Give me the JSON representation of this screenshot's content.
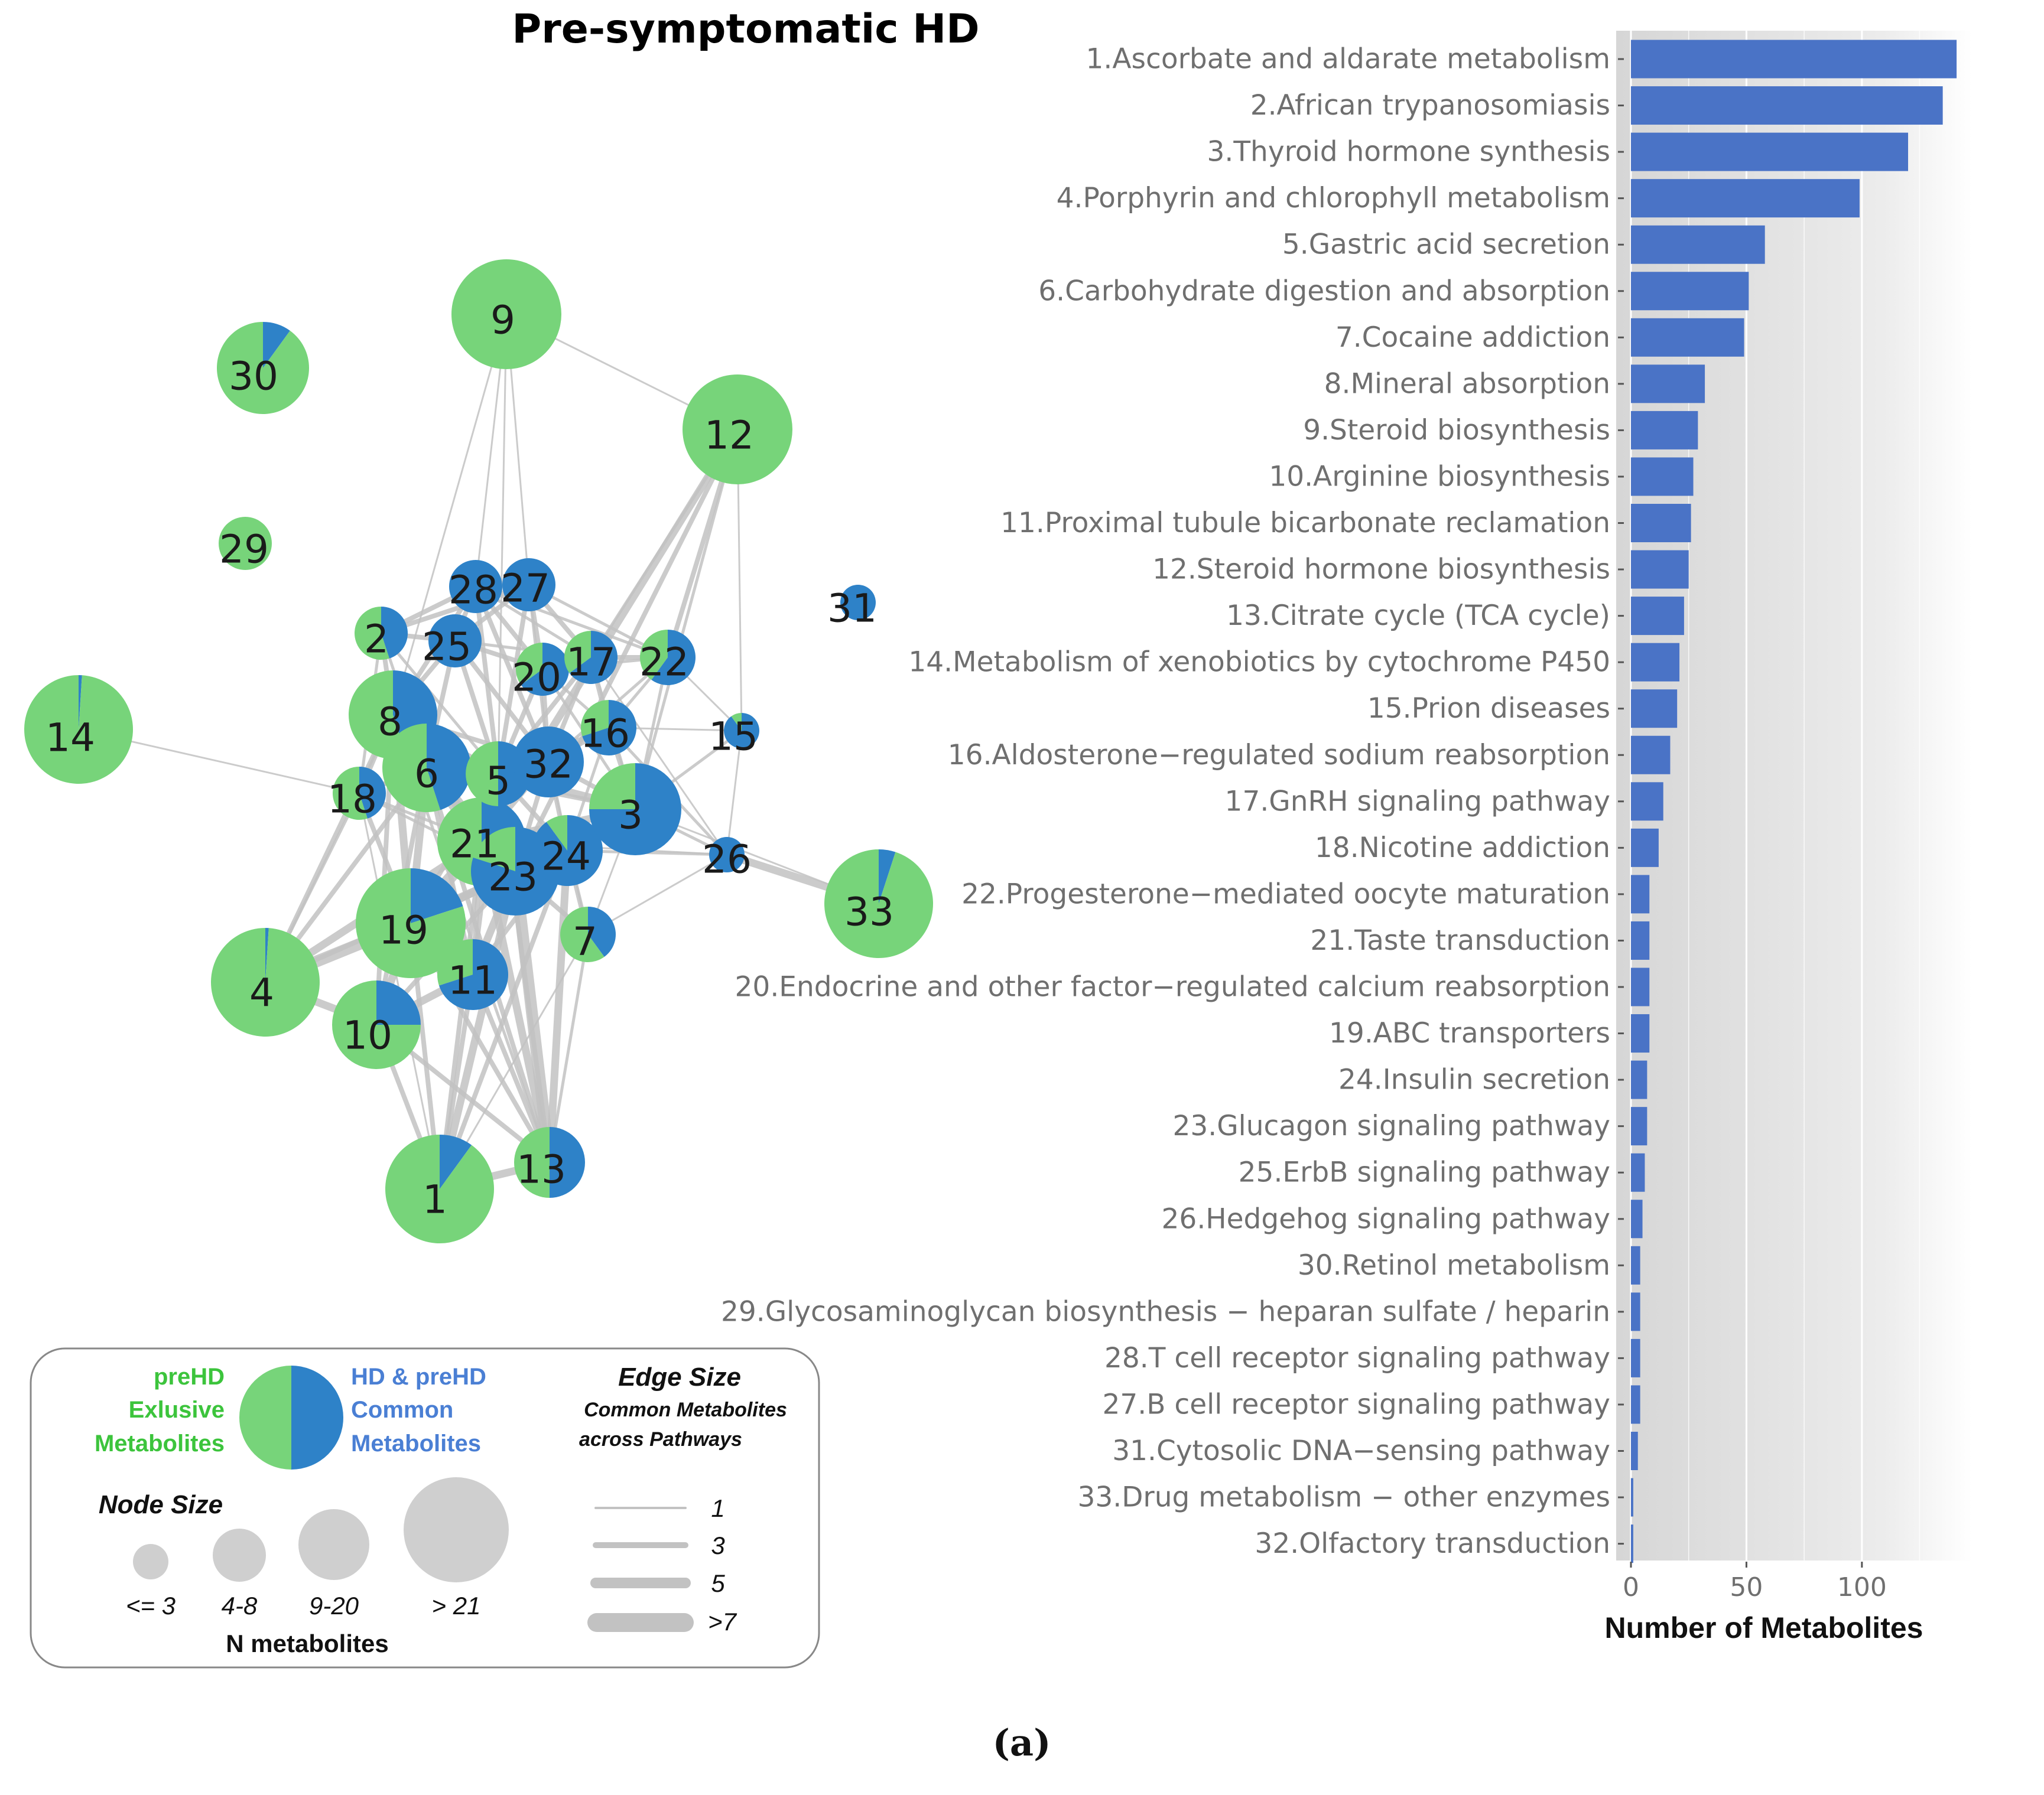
{
  "figure": {
    "network_title": "Pre-symptomatic HD",
    "panel_label": "(a)"
  },
  "colors": {
    "exclusive": "#77d47a",
    "common": "#2e82c8",
    "bar": "#4a73c6",
    "edge": "#c2c2c2",
    "legend_node": "#cfcfcf",
    "legend_green_text": "#3cc43c",
    "legend_blue_text": "#4a7fd4"
  },
  "network": {
    "nodes": [
      {
        "id": "1",
        "exclusive_share": 0.9
      },
      {
        "id": "2",
        "exclusive_share": 0.55
      },
      {
        "id": "3",
        "exclusive_share": 0.25
      },
      {
        "id": "4",
        "exclusive_share": 0.99
      },
      {
        "id": "5",
        "exclusive_share": 0.5
      },
      {
        "id": "6",
        "exclusive_share": 0.55
      },
      {
        "id": "7",
        "exclusive_share": 0.6
      },
      {
        "id": "8",
        "exclusive_share": 0.55
      },
      {
        "id": "9",
        "exclusive_share": 1.0
      },
      {
        "id": "10",
        "exclusive_share": 0.75
      },
      {
        "id": "11",
        "exclusive_share": 0.3
      },
      {
        "id": "12",
        "exclusive_share": 1.0
      },
      {
        "id": "13",
        "exclusive_share": 0.5
      },
      {
        "id": "14",
        "exclusive_share": 0.99
      },
      {
        "id": "15",
        "exclusive_share": 0.1
      },
      {
        "id": "16",
        "exclusive_share": 0.3
      },
      {
        "id": "17",
        "exclusive_share": 0.35
      },
      {
        "id": "18",
        "exclusive_share": 0.55
      },
      {
        "id": "19",
        "exclusive_share": 0.8
      },
      {
        "id": "20",
        "exclusive_share": 0.35
      },
      {
        "id": "21",
        "exclusive_share": 0.55
      },
      {
        "id": "22",
        "exclusive_share": 0.4
      },
      {
        "id": "23",
        "exclusive_share": 0.2
      },
      {
        "id": "24",
        "exclusive_share": 0.1
      },
      {
        "id": "25",
        "exclusive_share": 0.0
      },
      {
        "id": "26",
        "exclusive_share": 0.0
      },
      {
        "id": "27",
        "exclusive_share": 0.0
      },
      {
        "id": "28",
        "exclusive_share": 0.0
      },
      {
        "id": "29",
        "exclusive_share": 1.0
      },
      {
        "id": "30",
        "exclusive_share": 0.9
      },
      {
        "id": "31",
        "exclusive_share": 0.0
      },
      {
        "id": "32",
        "exclusive_share": 0.0
      },
      {
        "id": "33",
        "exclusive_share": 0.95
      }
    ],
    "edges": [
      [
        "9",
        "12",
        1
      ],
      [
        "9",
        "28",
        1
      ],
      [
        "9",
        "27",
        1
      ],
      [
        "9",
        "8",
        1
      ],
      [
        "9",
        "5",
        1
      ],
      [
        "12",
        "22",
        3
      ],
      [
        "12",
        "3",
        2
      ],
      [
        "12",
        "15",
        1
      ],
      [
        "12",
        "21",
        5
      ],
      [
        "12",
        "23",
        3
      ],
      [
        "12",
        "17",
        2
      ],
      [
        "14",
        "18",
        1
      ],
      [
        "33",
        "26",
        5
      ],
      [
        "33",
        "3",
        1
      ],
      [
        "26",
        "3",
        2
      ],
      [
        "26",
        "24",
        2
      ],
      [
        "26",
        "21",
        1
      ],
      [
        "26",
        "15",
        1
      ],
      [
        "26",
        "17",
        1
      ],
      [
        "15",
        "22",
        1
      ],
      [
        "15",
        "16",
        1
      ],
      [
        "15",
        "3",
        2
      ],
      [
        "4",
        "19",
        7
      ],
      [
        "4",
        "10",
        5
      ],
      [
        "4",
        "21",
        5
      ],
      [
        "4",
        "23",
        3
      ],
      [
        "4",
        "8",
        3
      ],
      [
        "4",
        "18",
        2
      ],
      [
        "4",
        "6",
        3
      ],
      [
        "1",
        "13",
        5
      ],
      [
        "1",
        "19",
        3
      ],
      [
        "1",
        "10",
        3
      ],
      [
        "1",
        "11",
        3
      ],
      [
        "1",
        "23",
        5
      ],
      [
        "1",
        "24",
        3
      ],
      [
        "1",
        "21",
        3
      ],
      [
        "1",
        "18",
        1
      ],
      [
        "1",
        "7",
        1
      ],
      [
        "13",
        "23",
        7
      ],
      [
        "13",
        "24",
        5
      ],
      [
        "13",
        "21",
        5
      ],
      [
        "13",
        "11",
        3
      ],
      [
        "13",
        "19",
        3
      ],
      [
        "13",
        "10",
        3
      ],
      [
        "13",
        "7",
        2
      ],
      [
        "13",
        "6",
        3
      ],
      [
        "13",
        "5",
        3
      ],
      [
        "13",
        "8",
        2
      ],
      [
        "10",
        "19",
        5
      ],
      [
        "10",
        "11",
        5
      ],
      [
        "10",
        "23",
        3
      ],
      [
        "10",
        "6",
        3
      ],
      [
        "10",
        "8",
        3
      ],
      [
        "11",
        "19",
        5
      ],
      [
        "11",
        "23",
        5
      ],
      [
        "11",
        "24",
        3
      ],
      [
        "11",
        "21",
        3
      ],
      [
        "11",
        "5",
        3
      ],
      [
        "11",
        "6",
        3
      ],
      [
        "19",
        "21",
        7
      ],
      [
        "19",
        "23",
        5
      ],
      [
        "19",
        "6",
        5
      ],
      [
        "19",
        "8",
        5
      ],
      [
        "19",
        "18",
        3
      ],
      [
        "19",
        "5",
        3
      ],
      [
        "19",
        "24",
        3
      ],
      [
        "19",
        "3",
        2
      ],
      [
        "8",
        "6",
        7
      ],
      [
        "8",
        "5",
        5
      ],
      [
        "8",
        "21",
        5
      ],
      [
        "8",
        "2",
        3
      ],
      [
        "8",
        "18",
        3
      ],
      [
        "8",
        "28",
        3
      ],
      [
        "8",
        "25",
        3
      ],
      [
        "8",
        "23",
        3
      ],
      [
        "8",
        "32",
        3
      ],
      [
        "6",
        "5",
        7
      ],
      [
        "6",
        "21",
        7
      ],
      [
        "6",
        "23",
        5
      ],
      [
        "6",
        "32",
        3
      ],
      [
        "6",
        "3",
        3
      ],
      [
        "6",
        "18",
        3
      ],
      [
        "5",
        "21",
        7
      ],
      [
        "5",
        "23",
        5
      ],
      [
        "5",
        "32",
        5
      ],
      [
        "5",
        "3",
        5
      ],
      [
        "5",
        "24",
        3
      ],
      [
        "5",
        "16",
        3
      ],
      [
        "5",
        "20",
        3
      ],
      [
        "5",
        "17",
        3
      ],
      [
        "5",
        "25",
        3
      ],
      [
        "5",
        "27",
        3
      ],
      [
        "5",
        "28",
        3
      ],
      [
        "21",
        "23",
        7
      ],
      [
        "21",
        "24",
        5
      ],
      [
        "21",
        "3",
        5
      ],
      [
        "21",
        "32",
        3
      ],
      [
        "23",
        "24",
        7
      ],
      [
        "23",
        "3",
        5
      ],
      [
        "23",
        "7",
        3
      ],
      [
        "23",
        "32",
        3
      ],
      [
        "24",
        "3",
        5
      ],
      [
        "24",
        "7",
        3
      ],
      [
        "24",
        "16",
        2
      ],
      [
        "24",
        "32",
        3
      ],
      [
        "3",
        "16",
        3
      ],
      [
        "3",
        "32",
        3
      ],
      [
        "3",
        "22",
        2
      ],
      [
        "3",
        "17",
        2
      ],
      [
        "3",
        "20",
        2
      ],
      [
        "2",
        "28",
        3
      ],
      [
        "2",
        "25",
        3
      ],
      [
        "2",
        "27",
        3
      ],
      [
        "2",
        "18",
        2
      ],
      [
        "2",
        "5",
        2
      ],
      [
        "2",
        "6",
        2
      ],
      [
        "28",
        "27",
        3
      ],
      [
        "28",
        "25",
        3
      ],
      [
        "28",
        "20",
        3
      ],
      [
        "28",
        "17",
        2
      ],
      [
        "28",
        "32",
        3
      ],
      [
        "28",
        "22",
        2
      ],
      [
        "27",
        "25",
        3
      ],
      [
        "27",
        "17",
        3
      ],
      [
        "27",
        "22",
        2
      ],
      [
        "27",
        "20",
        3
      ],
      [
        "27",
        "32",
        2
      ],
      [
        "25",
        "20",
        3
      ],
      [
        "25",
        "32",
        3
      ],
      [
        "25",
        "17",
        2
      ],
      [
        "25",
        "6",
        3
      ],
      [
        "20",
        "17",
        3
      ],
      [
        "20",
        "22",
        2
      ],
      [
        "20",
        "32",
        3
      ],
      [
        "20",
        "16",
        2
      ],
      [
        "17",
        "22",
        3
      ],
      [
        "17",
        "16",
        3
      ],
      [
        "17",
        "32",
        3
      ],
      [
        "22",
        "16",
        2
      ],
      [
        "22",
        "32",
        2
      ],
      [
        "16",
        "32",
        3
      ],
      [
        "16",
        "26",
        2
      ],
      [
        "18",
        "6",
        3
      ],
      [
        "18",
        "21",
        2
      ],
      [
        "18",
        "23",
        2
      ],
      [
        "7",
        "3",
        1
      ],
      [
        "7",
        "26",
        1
      ],
      [
        "7",
        "32",
        1
      ]
    ]
  },
  "legend": {
    "exclusive_lines": [
      "preHD",
      "Exlusive",
      "Metabolites"
    ],
    "common_lines": [
      "HD & preHD",
      "Common",
      "Metabolites"
    ],
    "node_size_title": "Node Size",
    "node_size_labels": [
      "<= 3",
      "4-8",
      "9-20",
      "> 21"
    ],
    "node_size_caption": "N metabolites",
    "edge_size_title": "Edge Size",
    "edge_size_subtitle": [
      "Common Metabolites",
      "across Pathways"
    ],
    "edge_size_labels": [
      "1",
      "3",
      "5",
      ">7"
    ]
  },
  "chart_data": {
    "type": "bar",
    "orientation": "horizontal",
    "title": "",
    "xlabel": "Number of Metabolites",
    "ylabel": "",
    "xlim": [
      0,
      142
    ],
    "xticks": [
      0,
      50,
      100
    ],
    "grid": true,
    "categories": [
      "1.Ascorbate and aldarate metabolism",
      "2.African trypanosomiasis",
      "3.Thyroid hormone synthesis",
      "4.Porphyrin and chlorophyll metabolism",
      "5.Gastric acid secretion",
      "6.Carbohydrate digestion and absorption",
      "7.Cocaine addiction",
      "8.Mineral absorption",
      "9.Steroid biosynthesis",
      "10.Arginine biosynthesis",
      "11.Proximal tubule bicarbonate reclamation",
      "12.Steroid hormone biosynthesis",
      "13.Citrate cycle (TCA cycle)",
      "14.Metabolism of xenobiotics by cytochrome P450",
      "15.Prion diseases",
      "16.Aldosterone−regulated sodium reabsorption",
      "17.GnRH signaling pathway",
      "18.Nicotine addiction",
      "22.Progesterone−mediated oocyte maturation",
      "21.Taste transduction",
      "20.Endocrine and other factor−regulated calcium reabsorption",
      "19.ABC transporters",
      "24.Insulin secretion",
      "23.Glucagon signaling pathway",
      "25.ErbB signaling pathway",
      "26.Hedgehog signaling pathway",
      "30.Retinol metabolism",
      "29.Glycosaminoglycan biosynthesis − heparan sulfate / heparin",
      "28.T cell receptor signaling pathway",
      "27.B cell receptor signaling pathway",
      "31.Cytosolic DNA−sensing pathway",
      "33.Drug metabolism − other enzymes",
      "32.Olfactory transduction"
    ],
    "values": [
      141,
      135,
      120,
      99,
      58,
      51,
      49,
      32,
      29,
      27,
      26,
      25,
      23,
      21,
      20,
      17,
      14,
      12,
      8,
      8,
      8,
      8,
      7,
      7,
      6,
      5,
      4,
      4,
      4,
      4,
      3,
      1,
      1
    ]
  }
}
